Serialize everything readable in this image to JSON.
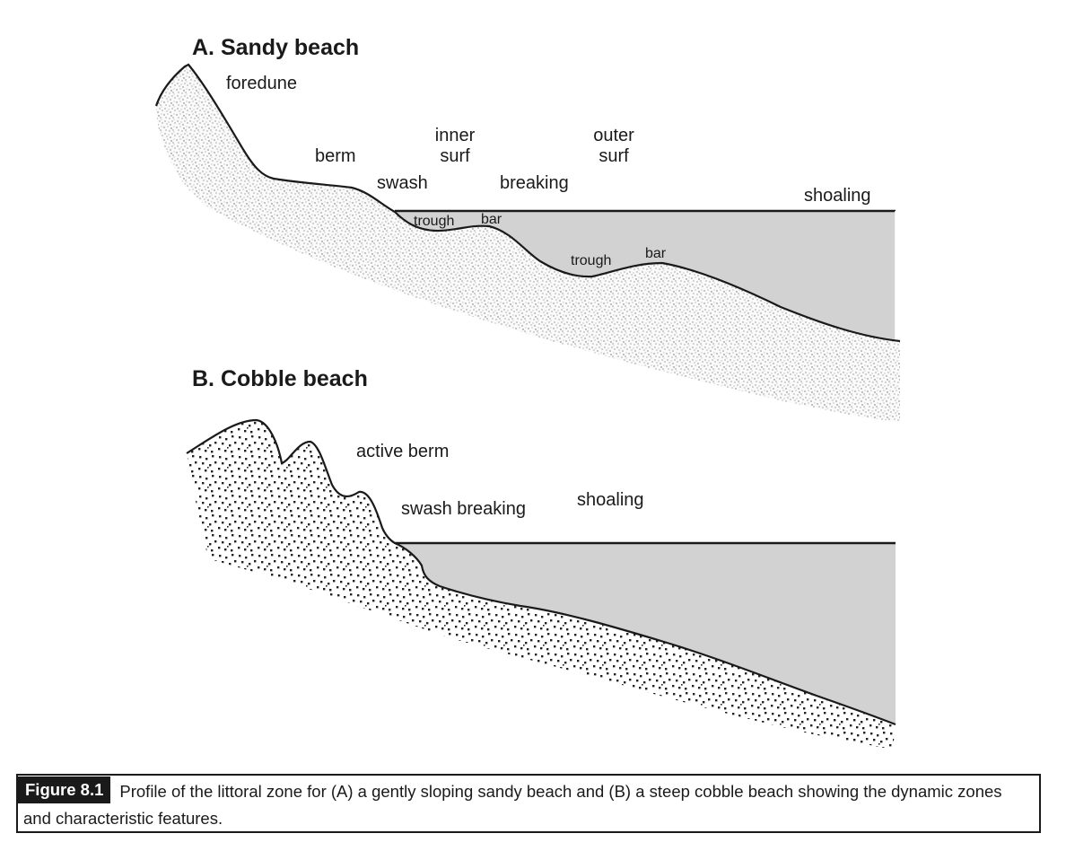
{
  "panel_a": {
    "title": "A. Sandy beach",
    "labels": {
      "foredune": "foredune",
      "berm": "berm",
      "swash": "swash",
      "inner_1": "inner",
      "inner_2": "surf",
      "breaking": "breaking",
      "outer_1": "outer",
      "outer_2": "surf",
      "shoaling": "shoaling",
      "trough_1": "trough",
      "bar_1": "bar",
      "trough_2": "trough",
      "bar_2": "bar"
    }
  },
  "panel_b": {
    "title": "B. Cobble beach",
    "labels": {
      "active_berm": "active berm",
      "swash_breaking": "swash breaking",
      "shoaling": "shoaling"
    }
  },
  "caption": {
    "figure_label": "Figure 8.1",
    "text_line1": "Profile of the littoral zone for (A) a gently sloping sandy beach and (B) a steep cobble beach showing the dynamic zones",
    "text_line2": "and characteristic features."
  },
  "colors": {
    "water": "#d2d2d2",
    "ink": "#1a1a1a"
  }
}
